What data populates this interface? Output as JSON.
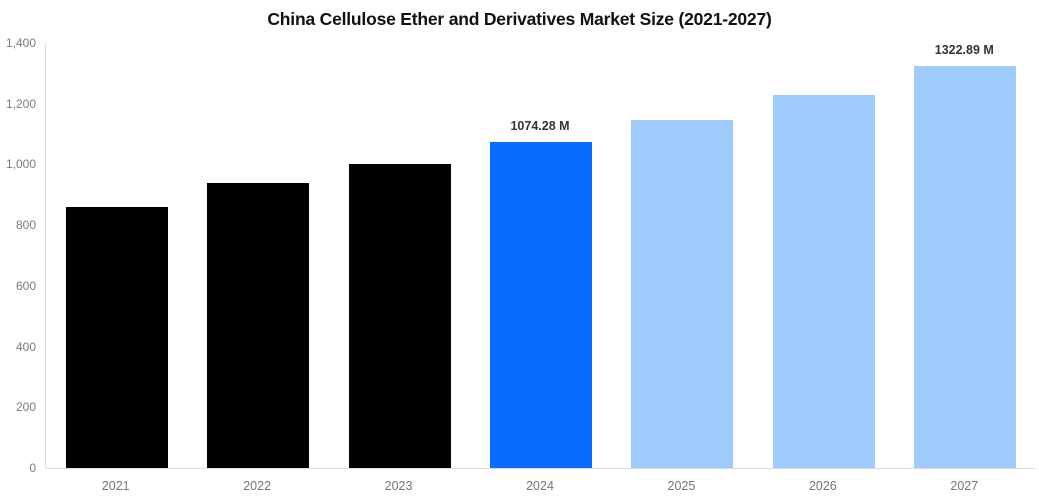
{
  "chart": {
    "title": "China Cellulose Ether and Derivatives Market Size (2021-2027)"
  },
  "chart_data": {
    "type": "bar",
    "title": "China Cellulose Ether and Derivatives Market Size (2021-2027)",
    "categories": [
      "2021",
      "2022",
      "2023",
      "2024",
      "2025",
      "2026",
      "2027"
    ],
    "values": [
      860,
      940,
      1000,
      1074.28,
      1145,
      1228,
      1322.89
    ],
    "unit": "M",
    "bar_colors": [
      "#000000",
      "#000000",
      "#000000",
      "#0a6cff",
      "#9ecbfb",
      "#9ecbfb",
      "#9ecbfb"
    ],
    "value_labels": [
      null,
      null,
      null,
      "1074.28 M",
      null,
      null,
      "1322.89 M"
    ],
    "xlabel": "",
    "ylabel": "",
    "ylim": [
      0,
      1400
    ],
    "y_ticks": [
      0,
      200,
      400,
      600,
      800,
      1000,
      1200,
      1400
    ],
    "y_tick_labels": [
      "0",
      "200",
      "400",
      "600",
      "800",
      "1,000",
      "1,200",
      "1,400"
    ],
    "grid": false,
    "legend": null,
    "colors": {
      "historical_bar": "#000000",
      "highlight_bar": "#0a6cff",
      "forecast_bar": "#9ecbfb",
      "axis_line": "#dddddd",
      "tick_text": "#757575",
      "value_label_text": "#333333",
      "title_text": "#111111"
    }
  }
}
